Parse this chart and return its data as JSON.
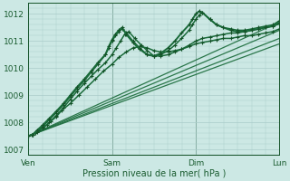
{
  "title": "",
  "xlabel": "Pression niveau de la mer( hPa )",
  "bg_color": "#cce8e4",
  "plot_bg_color": "#cce8e4",
  "grid_color": "#aaccca",
  "line_color": "#1a6b3a",
  "dark_line_color": "#145228",
  "ylim": [
    1006.8,
    1012.4
  ],
  "xlim": [
    0,
    3.0
  ],
  "xtick_labels": [
    "Ven",
    "Sam",
    "Dim",
    "Lun"
  ],
  "xtick_positions": [
    0,
    1,
    2,
    3
  ],
  "ytick_labels": [
    "1007",
    "1008",
    "1009",
    "1010",
    "1011",
    "1012"
  ],
  "ytick_positions": [
    1007,
    1008,
    1009,
    1010,
    1011,
    1012
  ],
  "lines": [
    {
      "x": [
        0.0,
        3.0
      ],
      "y": [
        1007.5,
        1010.9
      ],
      "lw": 0.9,
      "marker": null,
      "alpha": 0.9
    },
    {
      "x": [
        0.0,
        3.0
      ],
      "y": [
        1007.5,
        1011.1
      ],
      "lw": 0.9,
      "marker": null,
      "alpha": 0.9
    },
    {
      "x": [
        0.0,
        3.0
      ],
      "y": [
        1007.5,
        1011.4
      ],
      "lw": 0.9,
      "marker": null,
      "alpha": 0.9
    },
    {
      "x": [
        0.0,
        3.0
      ],
      "y": [
        1007.5,
        1011.7
      ],
      "lw": 0.9,
      "marker": null,
      "alpha": 0.9
    },
    {
      "x": [
        0.0,
        0.04,
        0.08,
        0.12,
        0.17,
        0.22,
        0.27,
        0.33,
        0.4,
        0.5,
        0.6,
        0.7,
        0.8,
        0.9,
        1.0,
        1.08,
        1.17,
        1.25,
        1.33,
        1.42,
        1.5,
        1.58,
        1.67,
        1.75,
        1.83,
        1.92,
        2.0,
        2.08,
        2.17,
        2.25,
        2.33,
        2.42,
        2.5,
        2.58,
        2.67,
        2.75,
        2.83,
        2.92,
        3.0
      ],
      "y": [
        1007.5,
        1007.55,
        1007.6,
        1007.7,
        1007.8,
        1007.9,
        1008.05,
        1008.2,
        1008.45,
        1008.7,
        1009.0,
        1009.3,
        1009.6,
        1009.9,
        1010.15,
        1010.4,
        1010.6,
        1010.75,
        1010.8,
        1010.75,
        1010.65,
        1010.6,
        1010.6,
        1010.65,
        1010.7,
        1010.8,
        1010.9,
        1010.95,
        1011.0,
        1011.05,
        1011.1,
        1011.1,
        1011.15,
        1011.2,
        1011.2,
        1011.25,
        1011.3,
        1011.35,
        1011.45
      ],
      "lw": 1.1,
      "marker": "+",
      "alpha": 1.0
    },
    {
      "x": [
        0.0,
        0.05,
        0.1,
        0.17,
        0.25,
        0.33,
        0.42,
        0.5,
        0.58,
        0.67,
        0.75,
        0.83,
        0.92,
        1.0,
        1.05,
        1.1,
        1.15,
        1.2,
        1.27,
        1.35,
        1.42,
        1.5,
        1.58,
        1.67,
        1.75,
        1.83,
        1.92,
        2.0,
        2.08,
        2.17,
        2.25,
        2.33,
        2.42,
        2.5,
        2.58,
        2.67,
        2.75,
        2.83,
        2.92,
        3.0
      ],
      "y": [
        1007.5,
        1007.55,
        1007.65,
        1007.8,
        1008.0,
        1008.25,
        1008.55,
        1008.85,
        1009.15,
        1009.45,
        1009.7,
        1009.95,
        1010.2,
        1010.5,
        1010.75,
        1011.0,
        1011.25,
        1011.35,
        1011.1,
        1010.85,
        1010.65,
        1010.45,
        1010.45,
        1010.5,
        1010.6,
        1010.7,
        1010.85,
        1011.0,
        1011.1,
        1011.15,
        1011.2,
        1011.25,
        1011.3,
        1011.3,
        1011.35,
        1011.4,
        1011.45,
        1011.5,
        1011.55,
        1011.65
      ],
      "lw": 1.1,
      "marker": "+",
      "alpha": 1.0
    },
    {
      "x": [
        0.0,
        0.05,
        0.1,
        0.17,
        0.25,
        0.33,
        0.42,
        0.5,
        0.58,
        0.67,
        0.75,
        0.83,
        0.92,
        0.96,
        1.0,
        1.04,
        1.08,
        1.12,
        1.17,
        1.25,
        1.33,
        1.42,
        1.5,
        1.58,
        1.67,
        1.75,
        1.83,
        1.92,
        1.96,
        2.0,
        2.04,
        2.08,
        2.17,
        2.25,
        2.33,
        2.42,
        2.5,
        2.58,
        2.67,
        2.75,
        2.83,
        2.92,
        3.0
      ],
      "y": [
        1007.5,
        1007.55,
        1007.7,
        1007.85,
        1008.1,
        1008.35,
        1008.65,
        1008.95,
        1009.25,
        1009.55,
        1009.85,
        1010.15,
        1010.5,
        1010.75,
        1011.0,
        1011.2,
        1011.35,
        1011.45,
        1011.3,
        1011.0,
        1010.75,
        1010.5,
        1010.45,
        1010.5,
        1010.65,
        1010.85,
        1011.1,
        1011.4,
        1011.6,
        1011.8,
        1011.95,
        1012.05,
        1011.8,
        1011.6,
        1011.5,
        1011.45,
        1011.4,
        1011.4,
        1011.45,
        1011.5,
        1011.55,
        1011.6,
        1011.75
      ],
      "lw": 1.1,
      "marker": "+",
      "alpha": 1.0
    },
    {
      "x": [
        0.0,
        0.05,
        0.1,
        0.17,
        0.25,
        0.33,
        0.42,
        0.5,
        0.58,
        0.67,
        0.75,
        0.83,
        0.92,
        0.96,
        1.0,
        1.04,
        1.08,
        1.12,
        1.17,
        1.25,
        1.33,
        1.42,
        1.5,
        1.58,
        1.67,
        1.75,
        1.83,
        1.92,
        1.96,
        2.0,
        2.04,
        2.08,
        2.17,
        2.25,
        2.33,
        2.42,
        2.5,
        2.58,
        2.67,
        2.75,
        2.83,
        2.92,
        3.0
      ],
      "y": [
        1007.5,
        1007.55,
        1007.7,
        1007.9,
        1008.15,
        1008.4,
        1008.7,
        1009.0,
        1009.3,
        1009.6,
        1009.9,
        1010.2,
        1010.5,
        1010.8,
        1011.05,
        1011.25,
        1011.4,
        1011.5,
        1011.25,
        1010.95,
        1010.7,
        1010.5,
        1010.45,
        1010.55,
        1010.75,
        1011.0,
        1011.3,
        1011.6,
        1011.8,
        1012.0,
        1012.1,
        1012.05,
        1011.8,
        1011.6,
        1011.5,
        1011.4,
        1011.35,
        1011.35,
        1011.4,
        1011.45,
        1011.5,
        1011.55,
        1011.65
      ],
      "lw": 1.4,
      "marker": "+",
      "alpha": 1.0
    }
  ]
}
